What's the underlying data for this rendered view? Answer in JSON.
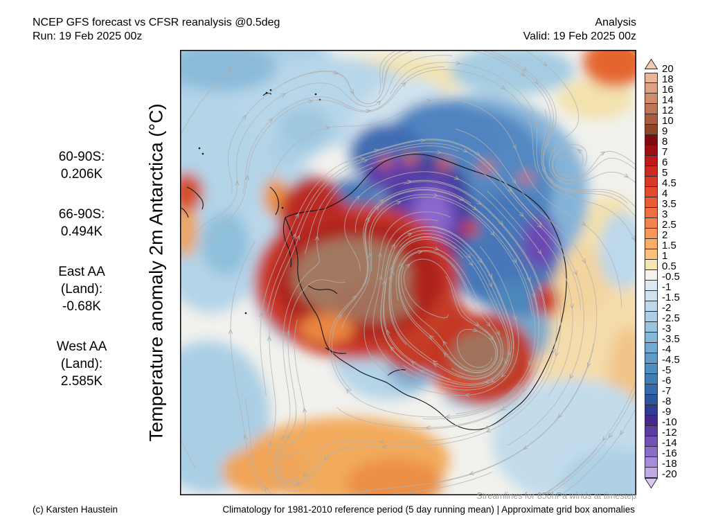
{
  "header": {
    "title": "NCEP GFS forecast vs CFSR reanalysis @0.5deg",
    "run": "Run: 19 Feb 2025 00z",
    "mode": "Analysis",
    "valid": "Valid: 19 Feb 2025 00z"
  },
  "stats": [
    {
      "name": "60-90S",
      "lines": [
        "60-90S:",
        "0.206K"
      ]
    },
    {
      "name": "66-90S",
      "lines": [
        "66-90S:",
        "0.494K"
      ]
    },
    {
      "name": "east-aa-land",
      "lines": [
        "East AA",
        "(Land):",
        "-0.68K"
      ]
    },
    {
      "name": "west-aa-land",
      "lines": [
        "West AA",
        "(Land):",
        "2.585K"
      ]
    }
  ],
  "map_axis_label": "Temperature anomaly 2m Antarctica (°C)",
  "colorbar": {
    "units": "°C",
    "over_color": "#f2cab2",
    "under_color": "#d9c8f1",
    "boundaries": [
      "20",
      "18",
      "16",
      "14",
      "12",
      "10",
      "9",
      "8",
      "7",
      "6",
      "5",
      "4.5",
      "4",
      "3.5",
      "3",
      "2.5",
      "2",
      "1.5",
      "1",
      "0.5",
      "-0.5",
      "-1",
      "-1.5",
      "-2",
      "-2.5",
      "-3",
      "-3.5",
      "-4",
      "-4.5",
      "-5",
      "-6",
      "-7",
      "-8",
      "-9",
      "-10",
      "-12",
      "-14",
      "-16",
      "-18",
      "-20"
    ],
    "segment_colors": [
      "#e9b49a",
      "#dfa183",
      "#d08d6c",
      "#bf7656",
      "#aa5c3e",
      "#8f4526",
      "#7d0b10",
      "#9c0f15",
      "#bc1a1c",
      "#cd2a21",
      "#d93a27",
      "#e24b2e",
      "#e95c36",
      "#ef6f40",
      "#f3834c",
      "#f79759",
      "#faac69",
      "#fcc17e",
      "#f3e6b0",
      "#f4f3ee",
      "#ddeaf3",
      "#cfe2ee",
      "#bed8e9",
      "#accee4",
      "#99c3de",
      "#85b7d7",
      "#72aad0",
      "#609cc8",
      "#4f8ec0",
      "#407eb6",
      "#346cac",
      "#2c57a0",
      "#2f3e93",
      "#46298c",
      "#5b3ca2",
      "#7253b4",
      "#8a6ec6",
      "#a78cd8",
      "#c2a9e8"
    ]
  },
  "footer": {
    "streamlines_note": "Streamlines for 850hPa winds at timestep",
    "climatology_note": "Climatology for 1981-2010 reference period (5 day running mean) | Approximate grid box anomalies",
    "copyright": "(c) Karsten Haustein"
  }
}
